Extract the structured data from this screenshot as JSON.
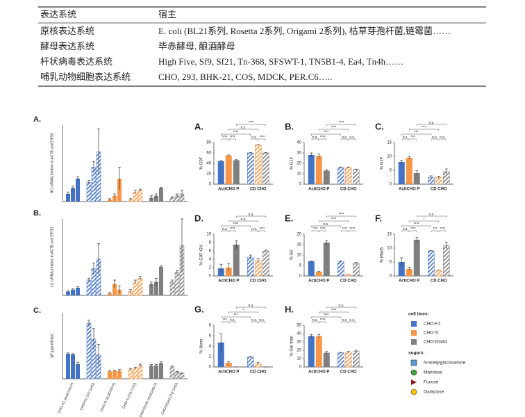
{
  "table": {
    "header": [
      "表达系统",
      "宿主"
    ],
    "rows": [
      [
        "原核表达系统",
        "E. coli (BL21系列, Rosetta 2系列, Origami 2系列), 枯草芽孢杆菌,链霉菌……"
      ],
      [
        "酵母表达系统",
        "毕赤酵母, 酿酒酵母"
      ],
      [
        "杆状病毒表达系统",
        "High Five, Sf9, Sf21, Tn-368, SFSWT-1, TN5B1-4, Ea4, Tn4h……"
      ],
      [
        "哺乳动物细胞表达系统",
        "CHO, 293, BHK-21, COS, MDCK, PER.C6….."
      ]
    ]
  },
  "chart_data": [
    {
      "type": "grouped-bar",
      "label": "A.",
      "ylabel": "HC mRNA [relative to ACTB and EIF3I]",
      "categories": [
        null,
        null,
        null,
        null,
        null,
        null
      ],
      "colors": [
        "#4472c4",
        "#4472c4",
        "#f79646",
        "#f79646",
        "#7f7f7f",
        "#7f7f7f"
      ],
      "hatched": [
        false,
        true,
        false,
        true,
        false,
        true
      ],
      "values": [
        [
          4,
          7,
          12
        ],
        [
          10,
          18,
          26
        ],
        [
          1,
          3,
          12
        ],
        [
          1,
          5,
          6
        ],
        [
          2,
          3,
          7
        ],
        [
          2,
          3,
          4
        ]
      ],
      "errors": [
        [
          1,
          1,
          1
        ],
        [
          1,
          3,
          12
        ],
        [
          0.5,
          1,
          6
        ],
        [
          0.5,
          1,
          0.5
        ],
        [
          1,
          1,
          0.5
        ],
        [
          0.5,
          1,
          2
        ]
      ],
      "ylim": [
        0,
        40
      ]
    },
    {
      "type": "grouped-bar",
      "label": "B.",
      "ylabel": "LC mRNA [relative to ACTB and EIF3I]",
      "categories": [
        null,
        null,
        null,
        null,
        null,
        null
      ],
      "colors": [
        "#4472c4",
        "#4472c4",
        "#f79646",
        "#f79646",
        "#7f7f7f",
        "#7f7f7f"
      ],
      "hatched": [
        false,
        true,
        false,
        true,
        false,
        true
      ],
      "values": [
        [
          2,
          3,
          4
        ],
        [
          8,
          14,
          19
        ],
        [
          1,
          6,
          3
        ],
        [
          2,
          7,
          9
        ],
        [
          6,
          7,
          15
        ],
        [
          7,
          12,
          26
        ]
      ],
      "errors": [
        [
          0.5,
          0.5,
          0.5
        ],
        [
          1,
          3,
          8
        ],
        [
          0.5,
          2,
          2
        ],
        [
          1,
          1,
          1
        ],
        [
          1,
          2,
          0.5
        ],
        [
          1,
          1,
          14
        ]
      ],
      "ylim": [
        0,
        40
      ]
    },
    {
      "type": "grouped-bar",
      "label": "C.",
      "ylabel": "qP [pg/cell/day]",
      "categories": [
        "CHO-K1 (ActiCHO P)",
        "CHO-K1 (CD CHO)",
        "CHO-S (ActiCHO P)",
        "CHO-S (CD CHO)",
        "CHO-DG44 (ActiCHO P)",
        "CHO-DG44 (CD CHO)"
      ],
      "colors": [
        "#4472c4",
        "#4472c4",
        "#f79646",
        "#f79646",
        "#7f7f7f",
        "#7f7f7f"
      ],
      "hatched": [
        false,
        true,
        false,
        true,
        false,
        true
      ],
      "values": [
        [
          9.5,
          9.2,
          5.5
        ],
        [
          21,
          15,
          9
        ],
        [
          2.8,
          3,
          3
        ],
        [
          3.5,
          4,
          5
        ],
        [
          5,
          5,
          6
        ],
        [
          4.5,
          2.5,
          2
        ]
      ],
      "errors": [
        [
          0.3,
          0.3,
          0.8
        ],
        [
          1.2,
          4,
          4
        ],
        [
          0.2,
          0.3,
          0.5
        ],
        [
          0.4,
          0.4,
          0.5
        ],
        [
          0.4,
          0.4,
          0.4
        ],
        [
          0.3,
          0.3,
          0.3
        ]
      ],
      "ylim": [
        0,
        25
      ]
    },
    {
      "type": "bar",
      "label": "A.",
      "ylabel": "% G0F",
      "categories": [
        "ActiCHO P",
        "CD CHO"
      ],
      "hatched": [
        false,
        true
      ],
      "series": [
        {
          "color": "#4472c4",
          "values": [
            44,
            60
          ],
          "errors": [
            2,
            1
          ]
        },
        {
          "color": "#f79646",
          "values": [
            55,
            75
          ],
          "errors": [
            1,
            1
          ]
        },
        {
          "color": "#7f7f7f",
          "values": [
            46,
            60
          ],
          "errors": [
            1,
            1
          ]
        }
      ],
      "ylim": [
        0,
        80
      ],
      "yticks": [
        0,
        20,
        40,
        60,
        80
      ],
      "significance": [
        "****",
        "n.s.",
        "****",
        "****",
        "****",
        "n.s.",
        "****"
      ]
    },
    {
      "type": "bar",
      "label": "B.",
      "ylabel": "% G1F",
      "categories": [
        "ActiCHO P",
        "CD CHO"
      ],
      "hatched": [
        false,
        true
      ],
      "series": [
        {
          "color": "#4472c4",
          "values": [
            28,
            16
          ],
          "errors": [
            2,
            0.5
          ]
        },
        {
          "color": "#f79646",
          "values": [
            27,
            16
          ],
          "errors": [
            2,
            0.5
          ]
        },
        {
          "color": "#7f7f7f",
          "values": [
            13,
            14
          ],
          "errors": [
            1,
            0.5
          ]
        }
      ],
      "ylim": [
        0,
        40
      ],
      "yticks": [
        0,
        10,
        20,
        30,
        40
      ],
      "significance": [
        "****",
        "****",
        "****",
        "n.s.",
        "****",
        "n.s.",
        "n.s."
      ]
    },
    {
      "type": "bar",
      "label": "C.",
      "ylabel": "% G2F",
      "categories": [
        "ActiCHO P",
        "CD CHO"
      ],
      "hatched": [
        false,
        true
      ],
      "series": [
        {
          "color": "#4472c4",
          "values": [
            8,
            2.5
          ],
          "errors": [
            0.6,
            0.5
          ]
        },
        {
          "color": "#f79646",
          "values": [
            9.5,
            2.5
          ],
          "errors": [
            0.5,
            0.4
          ]
        },
        {
          "color": "#7f7f7f",
          "values": [
            4,
            4.5
          ],
          "errors": [
            0.8,
            1
          ]
        }
      ],
      "ylim": [
        0,
        15
      ],
      "yticks": [
        0,
        5,
        10,
        15
      ],
      "significance": [
        "n.s.",
        "***",
        "***",
        "n.s.",
        "***",
        "n.s.",
        "n.s."
      ]
    },
    {
      "type": "bar",
      "label": "D.",
      "ylabel": "% G0F-GN",
      "categories": [
        "ActiCHO P",
        "CD CHO"
      ],
      "hatched": [
        false,
        true
      ],
      "series": [
        {
          "color": "#4472c4",
          "values": [
            1.8,
            4.5
          ],
          "errors": [
            1,
            0.5
          ]
        },
        {
          "color": "#f79646",
          "values": [
            2,
            3.7
          ],
          "errors": [
            1,
            0.5
          ]
        },
        {
          "color": "#7f7f7f",
          "values": [
            7.5,
            6
          ],
          "errors": [
            1,
            0.2
          ]
        }
      ],
      "ylim": [
        0,
        10
      ],
      "yticks": [
        0,
        2,
        4,
        6,
        8,
        10
      ],
      "significance": [
        "n.s.",
        "n.s.",
        "****",
        "n.s.",
        "****",
        "n.s.",
        "****"
      ]
    },
    {
      "type": "bar",
      "label": "E.",
      "ylabel": "% G0",
      "categories": [
        "ActiCHO P",
        "CD CHO"
      ],
      "hatched": [
        false,
        true
      ],
      "series": [
        {
          "color": "#4472c4",
          "values": [
            7,
            7
          ],
          "errors": [
            0.2,
            0.2
          ]
        },
        {
          "color": "#f79646",
          "values": [
            2,
            0.5
          ],
          "errors": [
            0.1,
            0.1
          ]
        },
        {
          "color": "#7f7f7f",
          "values": [
            16,
            6
          ],
          "errors": [
            1,
            0.5
          ]
        }
      ],
      "ylim": [
        0,
        20
      ],
      "yticks": [
        0,
        5,
        10,
        15,
        20
      ],
      "significance": [
        "****",
        "****",
        "n.s.",
        "****",
        "****",
        "****",
        "****"
      ]
    },
    {
      "type": "bar",
      "label": "F.",
      "ylabel": "% Man5",
      "categories": [
        "ActiCHO P",
        "CD CHO"
      ],
      "hatched": [
        false,
        true
      ],
      "series": [
        {
          "color": "#4472c4",
          "values": [
            5,
            9
          ],
          "errors": [
            1.5,
            0.1
          ]
        },
        {
          "color": "#f79646",
          "values": [
            2.5,
            2
          ],
          "errors": [
            0.6,
            0.1
          ]
        },
        {
          "color": "#7f7f7f",
          "values": [
            13,
            11
          ],
          "errors": [
            0.8,
            1.2
          ]
        }
      ],
      "ylim": [
        0,
        15
      ],
      "yticks": [
        0,
        5,
        10,
        15
      ],
      "significance": [
        "n.s.",
        "*",
        "****",
        "n.s.",
        "****",
        "***",
        "****"
      ]
    },
    {
      "type": "bar",
      "label": "G.",
      "ylabel": "% None",
      "categories": [
        "ActiCHO P",
        "CD CHO"
      ],
      "hatched": [
        false,
        true
      ],
      "series": [
        {
          "color": "#4472c4",
          "values": [
            4.7,
            1.9
          ],
          "errors": [
            1.7,
            0.1
          ]
        },
        {
          "color": "#f79646",
          "values": [
            0.8,
            0.7
          ],
          "errors": [
            0.2,
            0.2
          ]
        },
        {
          "color": "#7f7f7f",
          "values": [
            0,
            0
          ],
          "errors": [
            0,
            0
          ]
        }
      ],
      "ylim": [
        0,
        8
      ],
      "yticks": [
        0,
        2,
        4,
        6,
        8
      ],
      "significance": [
        "n.s.",
        "*",
        "***",
        "***",
        "n.s.",
        "n.s.",
        "n.s."
      ]
    },
    {
      "type": "bar",
      "label": "H.",
      "ylabel": "% Gal total",
      "categories": [
        "ActiCHO P",
        "CD CHO"
      ],
      "hatched": [
        false,
        true
      ],
      "series": [
        {
          "color": "#4472c4",
          "values": [
            37,
            17
          ],
          "errors": [
            2,
            0.5
          ]
        },
        {
          "color": "#f79646",
          "values": [
            37,
            18
          ],
          "errors": [
            2,
            0.5
          ]
        },
        {
          "color": "#7f7f7f",
          "values": [
            17,
            19
          ],
          "errors": [
            1.5,
            1
          ]
        }
      ],
      "ylim": [
        0,
        50
      ],
      "yticks": [
        0,
        10,
        20,
        30,
        40,
        50
      ],
      "significance": [
        "n.s.",
        "****",
        "****",
        "n.s.",
        "****",
        "n.s.",
        "n.s."
      ]
    }
  ],
  "legend": {
    "cell_lines_title": "cell lines:",
    "cell_lines": [
      {
        "name": "CHO-K1",
        "color": "#4472c4"
      },
      {
        "name": "CHO-S",
        "color": "#f79646"
      },
      {
        "name": "CHO-DG44",
        "color": "#7f7f7f"
      }
    ],
    "sugars_title": "sugars:",
    "sugars": [
      {
        "name": "N-acetylglucosamine",
        "color": "#5b9bd5",
        "shape": "square"
      },
      {
        "name": "Mannose",
        "color": "#3ca53c",
        "shape": "circle"
      },
      {
        "name": "Fucose",
        "color": "#8b1a1a",
        "shape": "triangle"
      },
      {
        "name": "Galactose",
        "color": "#ffc000",
        "shape": "circle"
      }
    ]
  }
}
